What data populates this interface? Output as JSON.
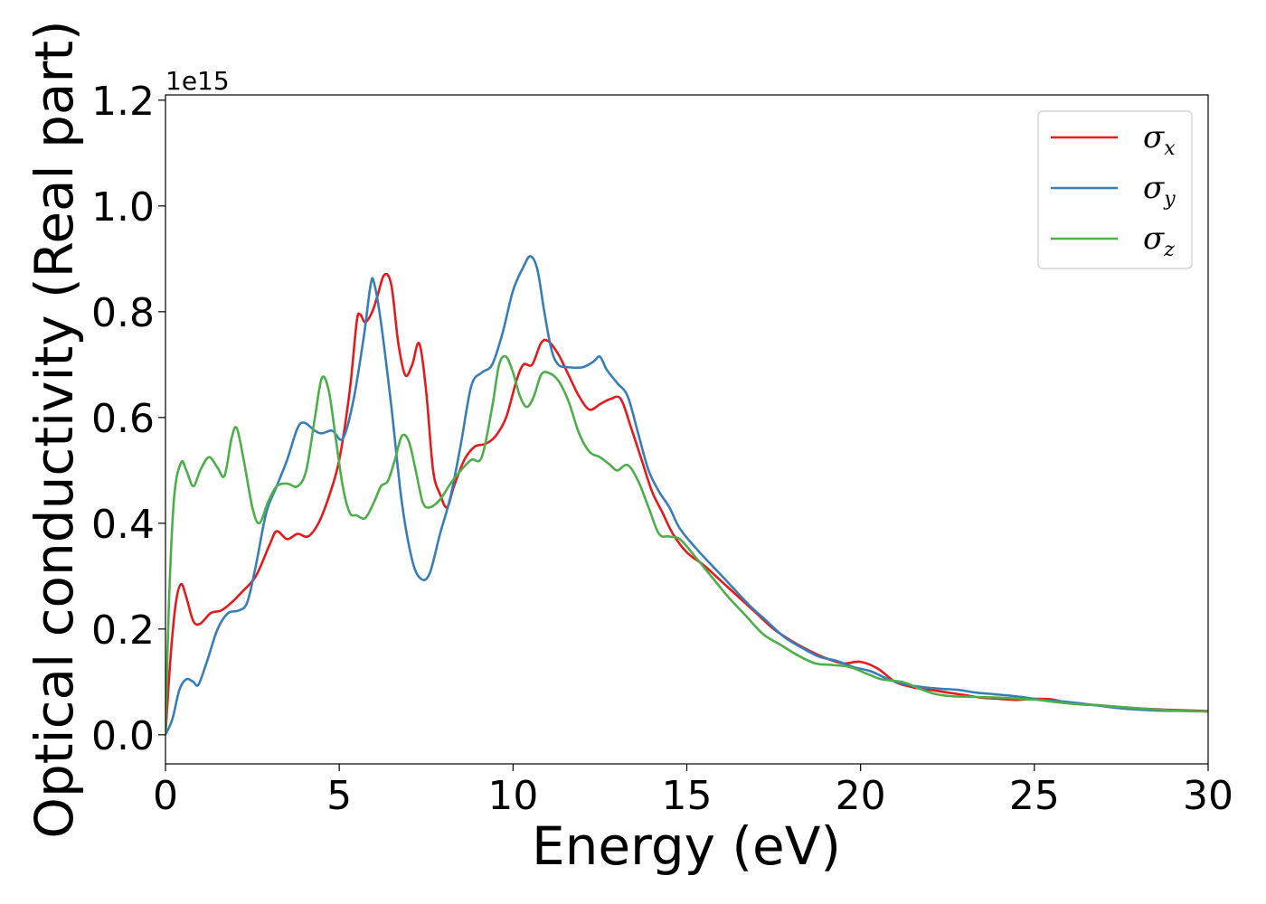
{
  "chart_data": {
    "type": "line",
    "xlabel": "Energy (eV)",
    "ylabel": "Optical conductivity (Real part)",
    "offset_text": "1e15",
    "xlim": [
      0,
      30
    ],
    "ylim": [
      -0.055,
      1.21
    ],
    "x_ticks": [
      0,
      5,
      10,
      15,
      20,
      25,
      30
    ],
    "x_tick_labels": [
      "0",
      "5",
      "10",
      "15",
      "20",
      "25",
      "30"
    ],
    "y_ticks": [
      0.0,
      0.2,
      0.4,
      0.6,
      0.8,
      1.0,
      1.2
    ],
    "y_tick_labels": [
      "0.0",
      "0.2",
      "0.4",
      "0.6",
      "0.8",
      "1.0",
      "1.2"
    ],
    "grid": false,
    "legend_position": "top-right",
    "series": [
      {
        "name": "σx",
        "symbol": "σ",
        "subscript": "x",
        "color": "#e41a1c",
        "points": [
          [
            0,
            0.0
          ],
          [
            0.15,
            0.15
          ],
          [
            0.3,
            0.25
          ],
          [
            0.45,
            0.285
          ],
          [
            0.6,
            0.26
          ],
          [
            0.8,
            0.215
          ],
          [
            1.0,
            0.21
          ],
          [
            1.3,
            0.23
          ],
          [
            1.6,
            0.235
          ],
          [
            1.9,
            0.25
          ],
          [
            2.2,
            0.27
          ],
          [
            2.6,
            0.3
          ],
          [
            3.0,
            0.36
          ],
          [
            3.2,
            0.385
          ],
          [
            3.5,
            0.37
          ],
          [
            3.8,
            0.38
          ],
          [
            4.1,
            0.375
          ],
          [
            4.4,
            0.4
          ],
          [
            4.7,
            0.45
          ],
          [
            5.0,
            0.52
          ],
          [
            5.3,
            0.65
          ],
          [
            5.5,
            0.78
          ],
          [
            5.6,
            0.795
          ],
          [
            5.75,
            0.78
          ],
          [
            5.95,
            0.8
          ],
          [
            6.1,
            0.83
          ],
          [
            6.3,
            0.87
          ],
          [
            6.5,
            0.85
          ],
          [
            6.7,
            0.74
          ],
          [
            6.9,
            0.68
          ],
          [
            7.1,
            0.7
          ],
          [
            7.3,
            0.74
          ],
          [
            7.5,
            0.65
          ],
          [
            7.7,
            0.5
          ],
          [
            7.9,
            0.455
          ],
          [
            8.1,
            0.43
          ],
          [
            8.3,
            0.47
          ],
          [
            8.6,
            0.52
          ],
          [
            8.9,
            0.545
          ],
          [
            9.2,
            0.55
          ],
          [
            9.5,
            0.565
          ],
          [
            9.8,
            0.6
          ],
          [
            10.1,
            0.67
          ],
          [
            10.3,
            0.7
          ],
          [
            10.55,
            0.7
          ],
          [
            10.8,
            0.74
          ],
          [
            11.0,
            0.745
          ],
          [
            11.3,
            0.72
          ],
          [
            11.6,
            0.68
          ],
          [
            11.9,
            0.64
          ],
          [
            12.2,
            0.615
          ],
          [
            12.5,
            0.625
          ],
          [
            12.8,
            0.635
          ],
          [
            13.1,
            0.635
          ],
          [
            13.4,
            0.58
          ],
          [
            13.7,
            0.52
          ],
          [
            14.0,
            0.46
          ],
          [
            14.3,
            0.42
          ],
          [
            14.6,
            0.38
          ],
          [
            15.0,
            0.345
          ],
          [
            15.5,
            0.32
          ],
          [
            16.0,
            0.29
          ],
          [
            16.5,
            0.26
          ],
          [
            17.0,
            0.23
          ],
          [
            17.5,
            0.2
          ],
          [
            18.0,
            0.178
          ],
          [
            18.5,
            0.16
          ],
          [
            19.0,
            0.145
          ],
          [
            19.5,
            0.135
          ],
          [
            20.0,
            0.138
          ],
          [
            20.5,
            0.125
          ],
          [
            21.0,
            0.1
          ],
          [
            21.5,
            0.09
          ],
          [
            22.0,
            0.085
          ],
          [
            22.5,
            0.08
          ],
          [
            23.0,
            0.075
          ],
          [
            23.5,
            0.07
          ],
          [
            24.0,
            0.068
          ],
          [
            24.5,
            0.066
          ],
          [
            25.0,
            0.068
          ],
          [
            25.5,
            0.067
          ],
          [
            26.0,
            0.06
          ],
          [
            27.0,
            0.055
          ],
          [
            28.0,
            0.05
          ],
          [
            29.0,
            0.047
          ],
          [
            30.0,
            0.045
          ]
        ]
      },
      {
        "name": "σy",
        "symbol": "σ",
        "subscript": "y",
        "color": "#377eb8",
        "points": [
          [
            0,
            0.0
          ],
          [
            0.2,
            0.03
          ],
          [
            0.4,
            0.085
          ],
          [
            0.6,
            0.105
          ],
          [
            0.8,
            0.1
          ],
          [
            0.95,
            0.095
          ],
          [
            1.2,
            0.14
          ],
          [
            1.5,
            0.2
          ],
          [
            1.8,
            0.23
          ],
          [
            2.1,
            0.235
          ],
          [
            2.35,
            0.25
          ],
          [
            2.6,
            0.32
          ],
          [
            2.9,
            0.42
          ],
          [
            3.2,
            0.47
          ],
          [
            3.5,
            0.52
          ],
          [
            3.8,
            0.58
          ],
          [
            4.0,
            0.59
          ],
          [
            4.3,
            0.575
          ],
          [
            4.5,
            0.57
          ],
          [
            4.8,
            0.575
          ],
          [
            5.1,
            0.56
          ],
          [
            5.4,
            0.63
          ],
          [
            5.7,
            0.75
          ],
          [
            5.9,
            0.85
          ],
          [
            6.0,
            0.855
          ],
          [
            6.2,
            0.78
          ],
          [
            6.5,
            0.62
          ],
          [
            6.8,
            0.44
          ],
          [
            7.1,
            0.33
          ],
          [
            7.35,
            0.295
          ],
          [
            7.6,
            0.305
          ],
          [
            7.9,
            0.38
          ],
          [
            8.2,
            0.45
          ],
          [
            8.5,
            0.55
          ],
          [
            8.8,
            0.66
          ],
          [
            9.1,
            0.685
          ],
          [
            9.4,
            0.7
          ],
          [
            9.7,
            0.76
          ],
          [
            10.0,
            0.84
          ],
          [
            10.3,
            0.885
          ],
          [
            10.5,
            0.905
          ],
          [
            10.7,
            0.88
          ],
          [
            10.9,
            0.8
          ],
          [
            11.1,
            0.73
          ],
          [
            11.3,
            0.7
          ],
          [
            11.6,
            0.695
          ],
          [
            12.0,
            0.695
          ],
          [
            12.3,
            0.705
          ],
          [
            12.5,
            0.715
          ],
          [
            12.7,
            0.69
          ],
          [
            13.0,
            0.665
          ],
          [
            13.3,
            0.64
          ],
          [
            13.6,
            0.57
          ],
          [
            13.9,
            0.5
          ],
          [
            14.2,
            0.46
          ],
          [
            14.5,
            0.43
          ],
          [
            14.8,
            0.39
          ],
          [
            15.3,
            0.35
          ],
          [
            15.8,
            0.315
          ],
          [
            16.3,
            0.28
          ],
          [
            16.8,
            0.245
          ],
          [
            17.3,
            0.215
          ],
          [
            17.8,
            0.185
          ],
          [
            18.3,
            0.165
          ],
          [
            18.8,
            0.148
          ],
          [
            19.3,
            0.14
          ],
          [
            19.8,
            0.128
          ],
          [
            20.3,
            0.12
          ],
          [
            20.8,
            0.105
          ],
          [
            21.3,
            0.095
          ],
          [
            21.8,
            0.09
          ],
          [
            22.3,
            0.087
          ],
          [
            22.8,
            0.085
          ],
          [
            23.3,
            0.08
          ],
          [
            23.8,
            0.077
          ],
          [
            24.3,
            0.074
          ],
          [
            24.8,
            0.07
          ],
          [
            25.3,
            0.065
          ],
          [
            25.8,
            0.063
          ],
          [
            26.5,
            0.058
          ],
          [
            27.5,
            0.05
          ],
          [
            28.5,
            0.046
          ],
          [
            29.5,
            0.045
          ],
          [
            30.0,
            0.044
          ]
        ]
      },
      {
        "name": "σz",
        "symbol": "σ",
        "subscript": "z",
        "color": "#4daf4a",
        "points": [
          [
            0,
            0.0
          ],
          [
            0.1,
            0.25
          ],
          [
            0.25,
            0.45
          ],
          [
            0.45,
            0.515
          ],
          [
            0.6,
            0.5
          ],
          [
            0.8,
            0.47
          ],
          [
            1.0,
            0.5
          ],
          [
            1.25,
            0.525
          ],
          [
            1.5,
            0.505
          ],
          [
            1.7,
            0.49
          ],
          [
            1.9,
            0.56
          ],
          [
            2.05,
            0.58
          ],
          [
            2.25,
            0.52
          ],
          [
            2.5,
            0.43
          ],
          [
            2.7,
            0.4
          ],
          [
            2.95,
            0.44
          ],
          [
            3.2,
            0.47
          ],
          [
            3.5,
            0.475
          ],
          [
            3.8,
            0.47
          ],
          [
            4.05,
            0.5
          ],
          [
            4.3,
            0.6
          ],
          [
            4.5,
            0.675
          ],
          [
            4.7,
            0.65
          ],
          [
            4.9,
            0.56
          ],
          [
            5.1,
            0.47
          ],
          [
            5.3,
            0.42
          ],
          [
            5.5,
            0.415
          ],
          [
            5.75,
            0.41
          ],
          [
            6.0,
            0.44
          ],
          [
            6.2,
            0.47
          ],
          [
            6.4,
            0.48
          ],
          [
            6.6,
            0.52
          ],
          [
            6.8,
            0.565
          ],
          [
            7.0,
            0.555
          ],
          [
            7.2,
            0.5
          ],
          [
            7.4,
            0.44
          ],
          [
            7.6,
            0.43
          ],
          [
            7.9,
            0.445
          ],
          [
            8.2,
            0.475
          ],
          [
            8.5,
            0.5
          ],
          [
            8.8,
            0.52
          ],
          [
            9.1,
            0.525
          ],
          [
            9.4,
            0.62
          ],
          [
            9.6,
            0.7
          ],
          [
            9.8,
            0.715
          ],
          [
            10.0,
            0.685
          ],
          [
            10.2,
            0.64
          ],
          [
            10.4,
            0.62
          ],
          [
            10.6,
            0.64
          ],
          [
            10.8,
            0.68
          ],
          [
            11.0,
            0.685
          ],
          [
            11.3,
            0.67
          ],
          [
            11.6,
            0.63
          ],
          [
            11.9,
            0.57
          ],
          [
            12.2,
            0.535
          ],
          [
            12.5,
            0.525
          ],
          [
            12.8,
            0.51
          ],
          [
            13.0,
            0.5
          ],
          [
            13.3,
            0.51
          ],
          [
            13.6,
            0.48
          ],
          [
            13.9,
            0.43
          ],
          [
            14.2,
            0.38
          ],
          [
            14.5,
            0.375
          ],
          [
            14.8,
            0.37
          ],
          [
            15.2,
            0.34
          ],
          [
            15.7,
            0.3
          ],
          [
            16.2,
            0.26
          ],
          [
            16.7,
            0.225
          ],
          [
            17.2,
            0.19
          ],
          [
            17.7,
            0.17
          ],
          [
            18.2,
            0.15
          ],
          [
            18.7,
            0.135
          ],
          [
            19.2,
            0.132
          ],
          [
            19.7,
            0.128
          ],
          [
            20.2,
            0.115
          ],
          [
            20.6,
            0.105
          ],
          [
            21.2,
            0.1
          ],
          [
            21.6,
            0.09
          ],
          [
            22.1,
            0.078
          ],
          [
            22.6,
            0.073
          ],
          [
            23.1,
            0.072
          ],
          [
            23.6,
            0.071
          ],
          [
            24.1,
            0.07
          ],
          [
            24.6,
            0.068
          ],
          [
            25.1,
            0.066
          ],
          [
            25.6,
            0.062
          ],
          [
            26.2,
            0.058
          ],
          [
            27.0,
            0.055
          ],
          [
            28.0,
            0.05
          ],
          [
            29.0,
            0.046
          ],
          [
            30.0,
            0.044
          ]
        ]
      }
    ]
  }
}
